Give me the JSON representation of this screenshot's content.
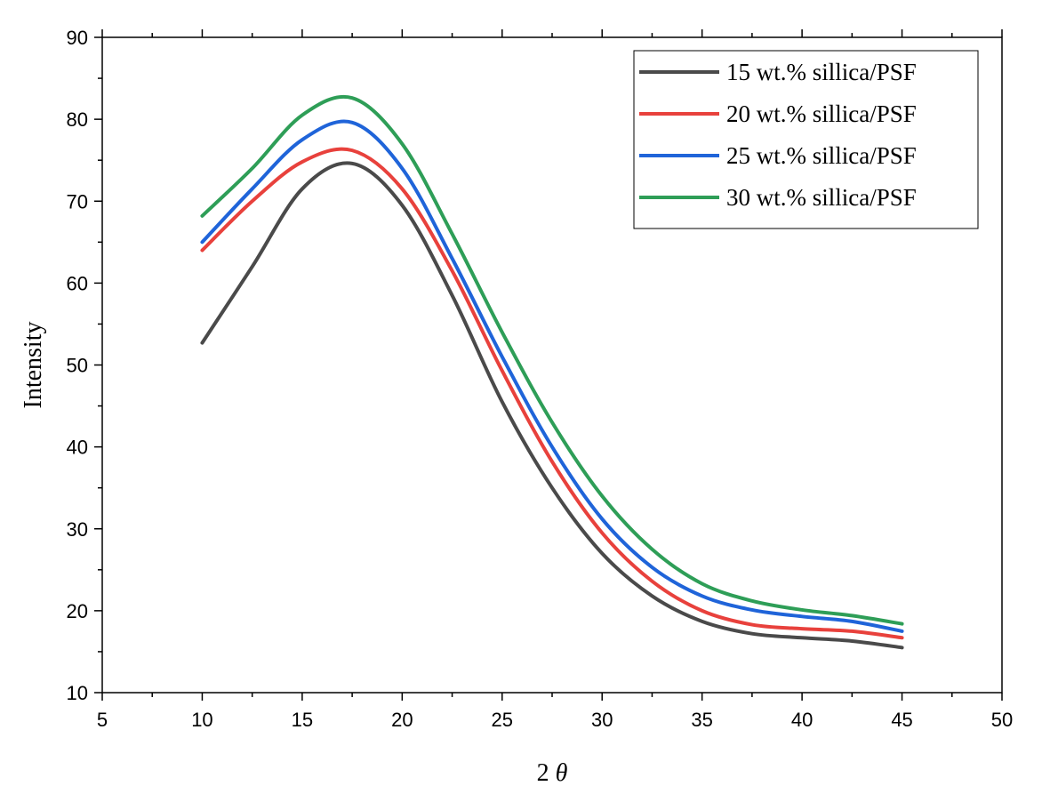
{
  "chart_data": {
    "type": "line",
    "title": "",
    "xlabel": "2 θ",
    "ylabel": "Intensity",
    "xlim": [
      5,
      50
    ],
    "ylim": [
      10,
      90
    ],
    "xticks": [
      5,
      10,
      15,
      20,
      25,
      30,
      35,
      40,
      45,
      50
    ],
    "yticks": [
      10,
      20,
      30,
      40,
      50,
      60,
      70,
      80,
      90
    ],
    "grid": false,
    "legend_position": "top-right",
    "x": [
      10,
      12.5,
      15,
      17.5,
      20,
      22.5,
      25,
      27.5,
      30,
      32.5,
      35,
      37.5,
      40,
      42.5,
      45
    ],
    "series": [
      {
        "name": "15 wt.% sillica/PSF",
        "color": "#4a4a4a",
        "values": [
          52.7,
          62.0,
          71.5,
          74.6,
          69.5,
          58.5,
          45.5,
          35.0,
          27.0,
          21.8,
          18.7,
          17.2,
          16.7,
          16.3,
          15.5
        ]
      },
      {
        "name": "20 wt.% sillica/PSF",
        "color": "#e8413c",
        "values": [
          64.0,
          70.0,
          74.8,
          76.2,
          71.5,
          61.5,
          49.3,
          38.2,
          29.5,
          23.6,
          20.0,
          18.3,
          17.8,
          17.5,
          16.7
        ]
      },
      {
        "name": "25 wt.% sillica/PSF",
        "color": "#1f64d9",
        "values": [
          65.0,
          71.5,
          77.5,
          79.6,
          74.0,
          63.0,
          51.0,
          40.0,
          31.2,
          25.3,
          21.8,
          20.1,
          19.3,
          18.7,
          17.5
        ]
      },
      {
        "name": "30 wt.% sillica/PSF",
        "color": "#2e9e57",
        "values": [
          68.2,
          74.0,
          80.5,
          82.6,
          77.0,
          66.0,
          54.0,
          43.0,
          34.0,
          27.5,
          23.3,
          21.2,
          20.1,
          19.4,
          18.4
        ]
      }
    ]
  }
}
